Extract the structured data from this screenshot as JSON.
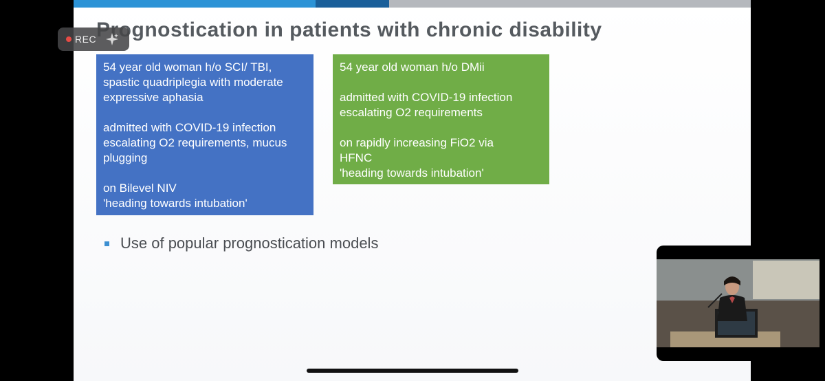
{
  "colors": {
    "bar_light_blue": "#2c93d6",
    "bar_dark_blue": "#1a5f9a",
    "bar_gray": "#b5b8bd",
    "blue_box": "#4472c4",
    "green_box": "#70ad47",
    "bullet": "#3d8fd1",
    "rec_dot": "#e64b45"
  },
  "rec_indicator": {
    "label": "REC"
  },
  "slide": {
    "title": "Prognostication in patients with chronic disability",
    "case_left": {
      "lines": [
        "54 year old woman h/o SCI/ TBI,",
        "spastic quadriplegia with moderate",
        "expressive aphasia",
        "",
        "admitted with COVID-19 infection",
        "escalating O2 requirements, mucus",
        "plugging",
        "",
        "on Bilevel NIV",
        "'heading towards intubation'"
      ]
    },
    "case_right": {
      "lines": [
        "54 year old woman h/o DMii",
        "",
        "admitted with COVID-19 infection",
        "escalating O2 requirements",
        "",
        "on rapidly increasing FiO2 via",
        "HFNC",
        "'heading towards intubation'"
      ]
    },
    "bullet": "Use of popular prognostication models"
  },
  "pip": {
    "icon": "speaker-video-icon"
  }
}
